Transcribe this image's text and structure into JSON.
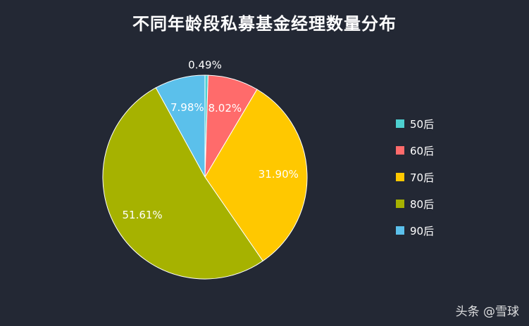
{
  "chart_data": {
    "type": "pie",
    "title": "不同年龄段私募基金经理数量分布",
    "categories": [
      "50后",
      "60后",
      "70后",
      "80后",
      "90后"
    ],
    "values": [
      0.49,
      8.02,
      31.9,
      51.61,
      7.98
    ],
    "value_labels": [
      "0.49%",
      "8.02%",
      "31.90%",
      "51.61%",
      "7.98%"
    ],
    "colors": [
      "#4dd0d0",
      "#ff6b6b",
      "#ffc800",
      "#a6b200",
      "#5bc0eb"
    ],
    "legend_placement": "right"
  },
  "watermark": "头条 @雪球"
}
